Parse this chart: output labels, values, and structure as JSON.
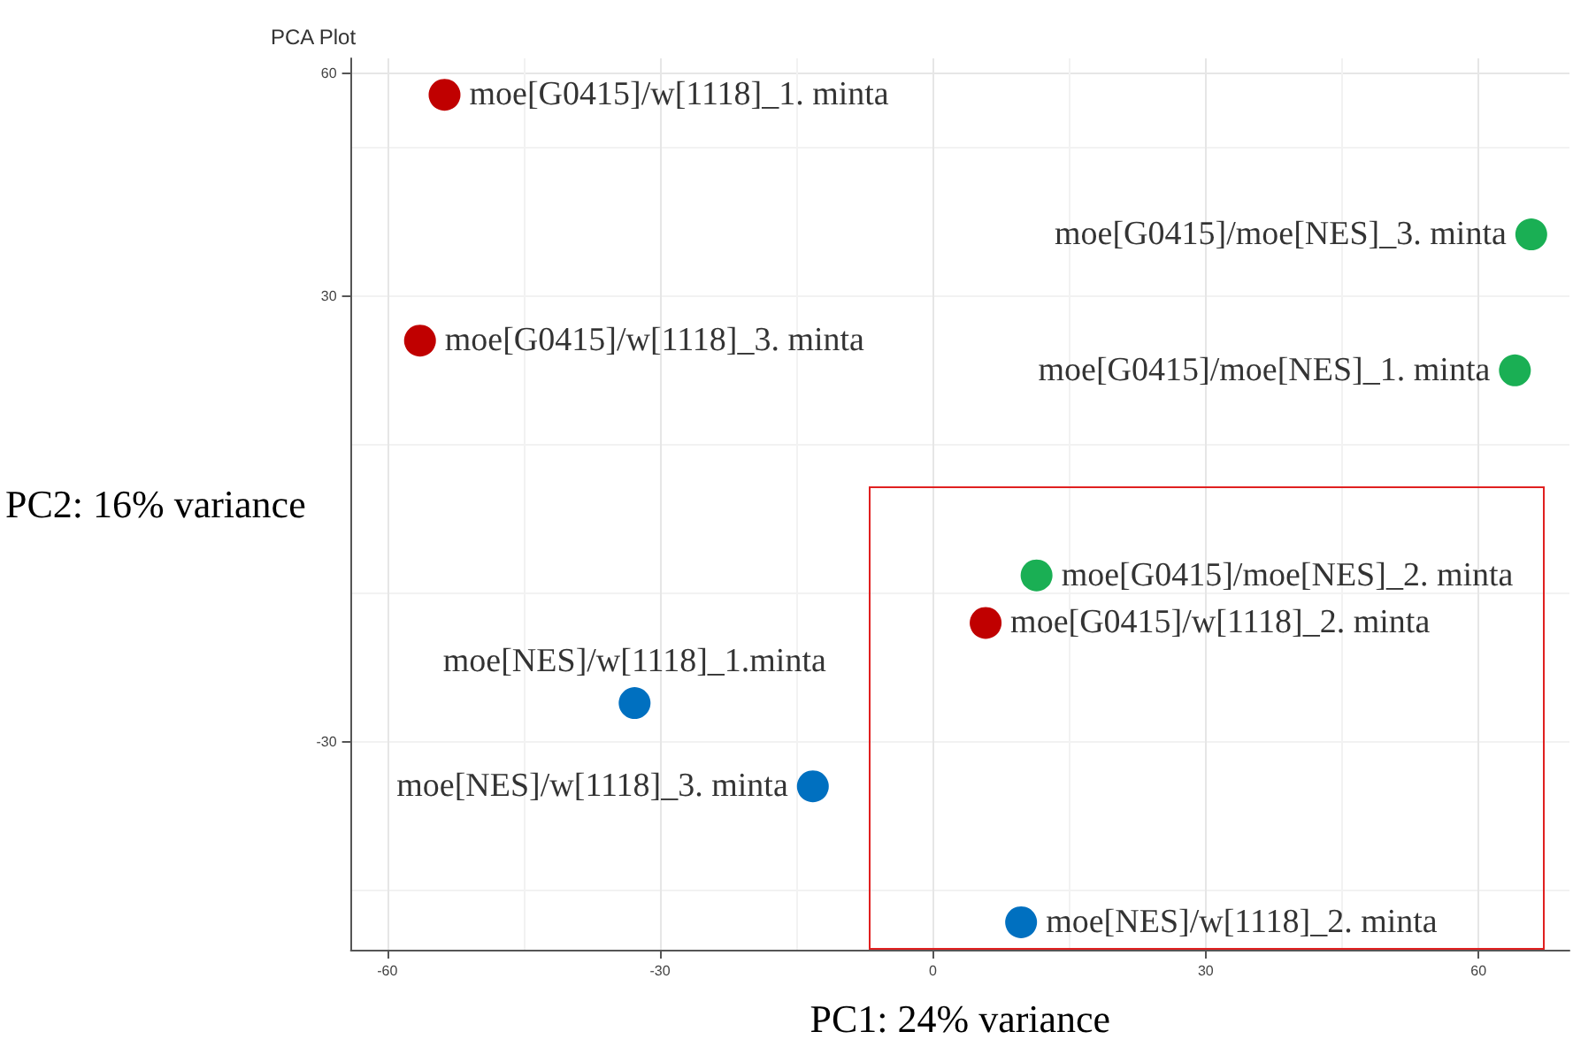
{
  "chart_data": {
    "type": "scatter",
    "title": "PCA Plot",
    "xlabel": "PC1: 24% variance",
    "ylabel": "PC2: 16% variance",
    "xlim": [
      -64,
      70
    ],
    "ylim": [
      -58,
      62
    ],
    "xticks": [
      -60,
      -30,
      0,
      30,
      60
    ],
    "yticks": [
      -30,
      30,
      60
    ],
    "grid": true,
    "marker": "circle",
    "series": [
      {
        "color": "#c00000",
        "x": [
          -53.7,
          -56.4,
          5.8
        ],
        "values": [
          57.1,
          24.0,
          -14.0
        ]
      },
      {
        "color": "#1aaf54",
        "x": [
          65.8,
          64.0,
          11.4
        ],
        "values": [
          38.3,
          20.0,
          -7.6
        ]
      },
      {
        "color": "#0070c0",
        "x": [
          -32.8,
          -13.2,
          9.7
        ],
        "values": [
          -24.8,
          -36.0,
          -54.3
        ]
      }
    ],
    "annotations": [
      {
        "text": "moe[G0415]/w[1118]_1. minta",
        "x": -53.7,
        "y": 57.1
      },
      {
        "text": "moe[G0415]/w[1118]_3. minta",
        "x": -56.4,
        "y": 24.0
      },
      {
        "text": "moe[G0415]/w[1118]_2. minta",
        "x": 5.8,
        "y": -14.0
      },
      {
        "text": "moe[G0415]/moe[NES]_3. minta",
        "x": 65.8,
        "y": 38.3
      },
      {
        "text": "moe[G0415]/moe[NES]_1. minta",
        "x": 64.0,
        "y": 20.0
      },
      {
        "text": "moe[G0415]/moe[NES]_2. minta",
        "x": 11.4,
        "y": -7.6
      },
      {
        "text": "moe[NES]/w[1118]_1.minta",
        "x": -32.8,
        "y": -24.8
      },
      {
        "text": "moe[NES]/w[1118]_3. minta",
        "x": -13.2,
        "y": -36.0
      },
      {
        "text": "moe[NES]/w[1118]_2. minta",
        "x": 9.7,
        "y": -54.3
      }
    ]
  }
}
